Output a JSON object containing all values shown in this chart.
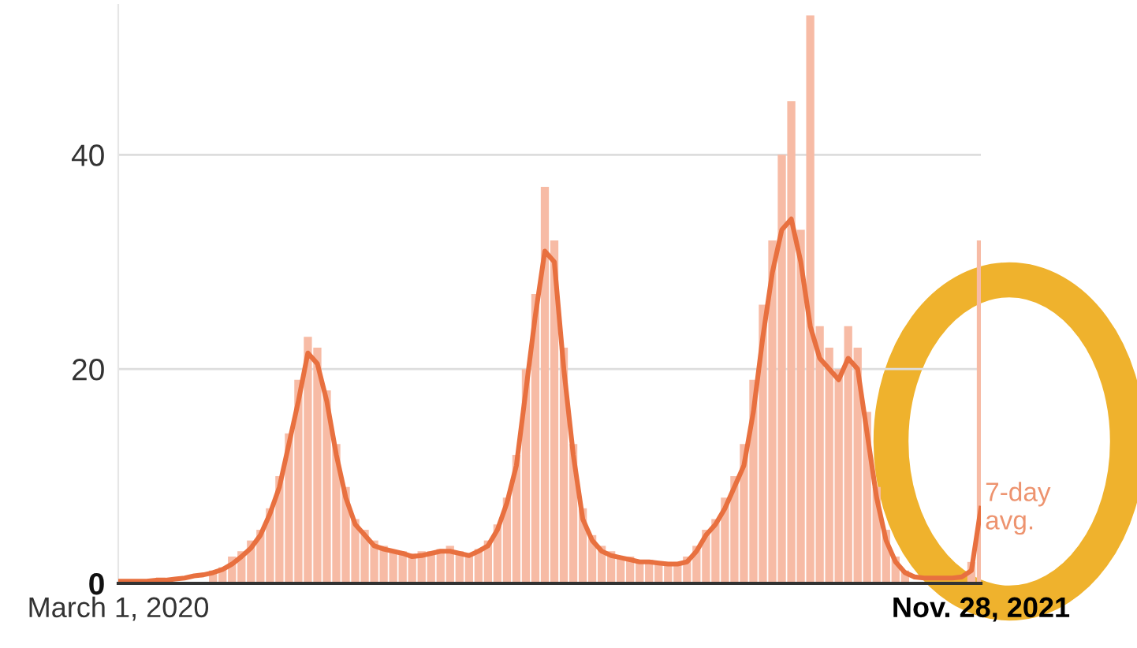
{
  "chart_data": {
    "type": "bar",
    "x": [
      "2020-03-01",
      "2020-03-08",
      "2020-03-15",
      "2020-03-22",
      "2020-03-29",
      "2020-04-05",
      "2020-04-12",
      "2020-04-19",
      "2020-04-26",
      "2020-05-03",
      "2020-05-10",
      "2020-05-17",
      "2020-05-24",
      "2020-05-31",
      "2020-06-07",
      "2020-06-14",
      "2020-06-21",
      "2020-06-28",
      "2020-07-05",
      "2020-07-12",
      "2020-07-19",
      "2020-07-26",
      "2020-08-02",
      "2020-08-09",
      "2020-08-16",
      "2020-08-23",
      "2020-08-30",
      "2020-09-06",
      "2020-09-13",
      "2020-09-20",
      "2020-09-27",
      "2020-10-04",
      "2020-10-11",
      "2020-10-18",
      "2020-10-25",
      "2020-11-01",
      "2020-11-08",
      "2020-11-15",
      "2020-11-22",
      "2020-11-29",
      "2020-12-06",
      "2020-12-13",
      "2020-12-20",
      "2020-12-27",
      "2021-01-03",
      "2021-01-10",
      "2021-01-17",
      "2021-01-24",
      "2021-01-31",
      "2021-02-07",
      "2021-02-14",
      "2021-02-21",
      "2021-02-28",
      "2021-03-07",
      "2021-03-14",
      "2021-03-21",
      "2021-03-28",
      "2021-04-04",
      "2021-04-11",
      "2021-04-18",
      "2021-04-25",
      "2021-05-02",
      "2021-05-09",
      "2021-05-16",
      "2021-05-23",
      "2021-05-30",
      "2021-06-06",
      "2021-06-13",
      "2021-06-20",
      "2021-06-27",
      "2021-07-04",
      "2021-07-11",
      "2021-07-18",
      "2021-07-25",
      "2021-08-01",
      "2021-08-08",
      "2021-08-15",
      "2021-08-22",
      "2021-08-29",
      "2021-09-05",
      "2021-09-12",
      "2021-09-19",
      "2021-09-26",
      "2021-10-03",
      "2021-10-10",
      "2021-10-17",
      "2021-10-24",
      "2021-10-31",
      "2021-11-07",
      "2021-11-14",
      "2021-11-21",
      "2021-11-28"
    ],
    "series": [
      {
        "color": "#f7bba5",
        "values": [
          null,
          null,
          null,
          null,
          null,
          null,
          null,
          null,
          null,
          null,
          1.2,
          1.5,
          2.5,
          3,
          4,
          5,
          7,
          10,
          14,
          19,
          23,
          22,
          18,
          13,
          9,
          6,
          5,
          4,
          3.5,
          3,
          3,
          2.8,
          3,
          3,
          3.2,
          3.5,
          3,
          2.8,
          3.2,
          4,
          5.5,
          8,
          12,
          20,
          27,
          37,
          32,
          22,
          13,
          7,
          4.5,
          3.5,
          3,
          2.5,
          2.5,
          2.2,
          2.2,
          2,
          2,
          2,
          2.5,
          3.5,
          5,
          6,
          8,
          10,
          13,
          19,
          26,
          32,
          40,
          45,
          33,
          53,
          24,
          22,
          20,
          24,
          22,
          16,
          9,
          5,
          2.5,
          1.2,
          null,
          null,
          null,
          null,
          null,
          null,
          2,
          32
        ]
      },
      {
        "type": "line",
        "name": "7-day avg.",
        "color": "#e8703f",
        "values": [
          0.2,
          0.2,
          0.2,
          0.2,
          0.3,
          0.3,
          0.4,
          0.5,
          0.7,
          0.8,
          1.0,
          1.3,
          1.8,
          2.5,
          3.3,
          4.5,
          6.5,
          9,
          13,
          17,
          21.5,
          20.5,
          17,
          12,
          8,
          5.5,
          4.5,
          3.5,
          3.2,
          3,
          2.8,
          2.5,
          2.6,
          2.8,
          3,
          3,
          2.8,
          2.6,
          3,
          3.5,
          5,
          7.5,
          11,
          18,
          25,
          31,
          30,
          20,
          12,
          6,
          4,
          3,
          2.6,
          2.4,
          2.2,
          2,
          2,
          1.9,
          1.8,
          1.8,
          2,
          3,
          4.5,
          5.5,
          7,
          9,
          11,
          16,
          23,
          29,
          33,
          34,
          30,
          24,
          21,
          20,
          19,
          21,
          20,
          14,
          8,
          4,
          2,
          1,
          0.6,
          0.5,
          0.5,
          0.5,
          0.5,
          0.6,
          1.2,
          7
        ]
      }
    ],
    "ylim": [
      0,
      54
    ],
    "yticks": [
      0,
      20,
      40
    ],
    "xlim": [
      "2020-03-01",
      "2021-11-28"
    ],
    "xticks": [
      {
        "value": "2020-03-01",
        "label": "March 1, 2020"
      },
      {
        "value": "2021-11-28",
        "label": "Nov. 28, 2021"
      }
    ],
    "grid": "y"
  }
}
